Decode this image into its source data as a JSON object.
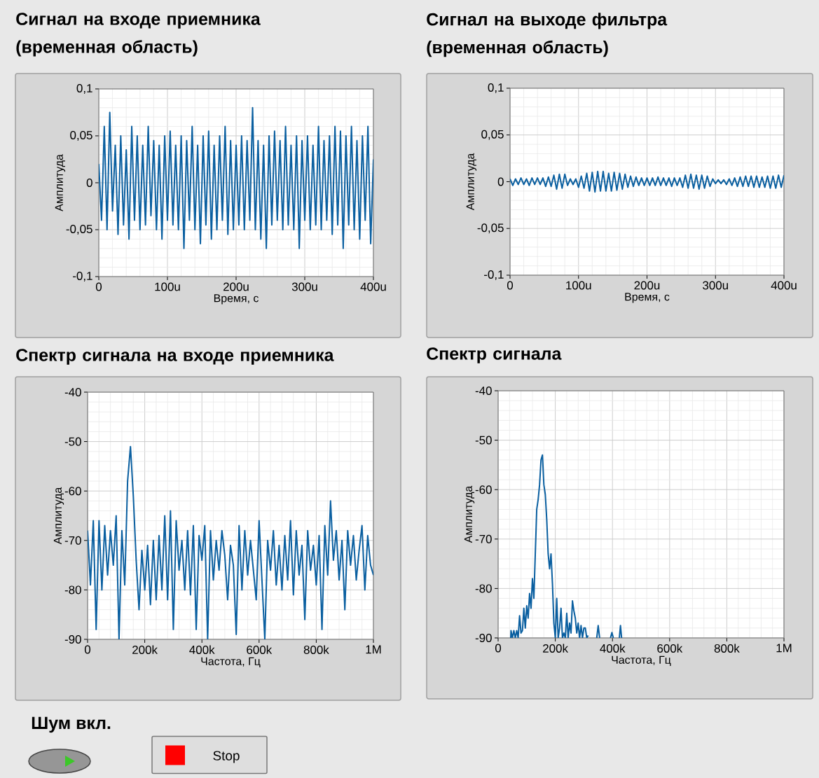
{
  "chart_data": [
    {
      "type": "line",
      "title": "Сигнал на входе приемника (временная область)",
      "xlabel": "Время, с",
      "ylabel": "Амплитуда",
      "color": "#0a5fa0",
      "grid": true,
      "xlim": [
        0,
        400
      ],
      "ylim": [
        -0.1,
        0.1
      ],
      "xticks": [
        0,
        {
          "value": 100,
          "label": "100u"
        },
        {
          "value": 200,
          "label": "200u"
        },
        {
          "value": 300,
          "label": "300u"
        },
        {
          "value": 400,
          "label": "400u"
        }
      ],
      "yticks": [
        {
          "value": -0.1,
          "label": "-0,1"
        },
        {
          "value": -0.05,
          "label": "-0,05"
        },
        0,
        {
          "value": 0.05,
          "label": "0,05"
        },
        {
          "value": 0.1,
          "label": "0,1"
        }
      ],
      "x": [
        0,
        4,
        8,
        12,
        16,
        20,
        24,
        28,
        32,
        36,
        40,
        44,
        48,
        52,
        56,
        60,
        64,
        68,
        72,
        76,
        80,
        84,
        88,
        92,
        96,
        100,
        104,
        108,
        112,
        116,
        120,
        124,
        128,
        132,
        136,
        140,
        144,
        148,
        152,
        156,
        160,
        164,
        168,
        172,
        176,
        180,
        184,
        188,
        192,
        196,
        200,
        204,
        208,
        212,
        216,
        220,
        224,
        228,
        232,
        236,
        240,
        244,
        248,
        252,
        256,
        260,
        264,
        268,
        272,
        276,
        280,
        284,
        288,
        292,
        296,
        300,
        304,
        308,
        312,
        316,
        320,
        324,
        328,
        332,
        336,
        340,
        344,
        348,
        352,
        356,
        360,
        364,
        368,
        372,
        376,
        380,
        384,
        388,
        392,
        396,
        400
      ],
      "values": [
        0.02,
        -0.04,
        0.06,
        -0.05,
        0.075,
        -0.03,
        0.04,
        -0.055,
        0.05,
        -0.045,
        0.035,
        -0.06,
        0.06,
        -0.04,
        0.05,
        -0.05,
        0.04,
        -0.045,
        0.06,
        -0.035,
        0.045,
        -0.05,
        0.04,
        -0.06,
        0.05,
        -0.04,
        0.055,
        -0.045,
        0.04,
        -0.05,
        0.05,
        -0.07,
        0.045,
        -0.04,
        0.06,
        -0.05,
        0.04,
        -0.065,
        0.05,
        -0.045,
        0.055,
        -0.06,
        0.04,
        -0.05,
        0.05,
        -0.04,
        0.06,
        -0.055,
        0.045,
        -0.05,
        0.04,
        -0.045,
        0.05,
        -0.05,
        0.045,
        -0.04,
        0.08,
        -0.05,
        0.045,
        -0.06,
        0.04,
        -0.07,
        0.05,
        -0.045,
        0.055,
        -0.04,
        0.045,
        -0.05,
        0.06,
        -0.045,
        0.04,
        -0.05,
        0.05,
        -0.07,
        0.045,
        -0.04,
        0.05,
        -0.05,
        0.04,
        -0.045,
        0.06,
        -0.05,
        0.045,
        -0.04,
        0.05,
        -0.055,
        0.06,
        -0.045,
        0.055,
        -0.07,
        0.05,
        -0.045,
        0.06,
        -0.05,
        0.045,
        -0.06,
        0.05,
        -0.04,
        0.06,
        -0.065,
        0.025
      ]
    },
    {
      "type": "line",
      "title": "Сигнал на выходе фильтра (временная область)",
      "xlabel": "Время, с",
      "ylabel": "Амплитуда",
      "color": "#0a5fa0",
      "grid": true,
      "xlim": [
        0,
        400
      ],
      "ylim": [
        -0.1,
        0.1
      ],
      "xticks": [
        0,
        {
          "value": 100,
          "label": "100u"
        },
        {
          "value": 200,
          "label": "200u"
        },
        {
          "value": 300,
          "label": "300u"
        },
        {
          "value": 400,
          "label": "400u"
        }
      ],
      "yticks": [
        {
          "value": -0.1,
          "label": "-0,1"
        },
        {
          "value": -0.05,
          "label": "-0,05"
        },
        0,
        {
          "value": 0.05,
          "label": "0,05"
        },
        {
          "value": 0.1,
          "label": "0,1"
        }
      ],
      "x": [
        0,
        4,
        8,
        12,
        16,
        20,
        24,
        28,
        32,
        36,
        40,
        44,
        48,
        52,
        56,
        60,
        64,
        68,
        72,
        76,
        80,
        84,
        88,
        92,
        96,
        100,
        104,
        108,
        112,
        116,
        120,
        124,
        128,
        132,
        136,
        140,
        144,
        148,
        152,
        156,
        160,
        164,
        168,
        172,
        176,
        180,
        184,
        188,
        192,
        196,
        200,
        204,
        208,
        212,
        216,
        220,
        224,
        228,
        232,
        236,
        240,
        244,
        248,
        252,
        256,
        260,
        264,
        268,
        272,
        276,
        280,
        284,
        288,
        292,
        296,
        300,
        304,
        308,
        312,
        316,
        320,
        324,
        328,
        332,
        336,
        340,
        344,
        348,
        352,
        356,
        360,
        364,
        368,
        372,
        376,
        380,
        384,
        388,
        392,
        396,
        400
      ],
      "values": [
        0.003,
        -0.004,
        0.003,
        -0.003,
        0.004,
        -0.003,
        0.003,
        -0.004,
        0.004,
        -0.003,
        0.004,
        -0.003,
        0.004,
        -0.005,
        0.005,
        -0.005,
        0.007,
        -0.008,
        0.008,
        -0.007,
        0.008,
        -0.004,
        0.003,
        -0.003,
        0.003,
        -0.006,
        0.006,
        -0.007,
        0.009,
        -0.01,
        0.01,
        -0.011,
        0.011,
        -0.01,
        0.011,
        -0.01,
        0.009,
        -0.01,
        0.01,
        -0.009,
        0.009,
        -0.008,
        0.008,
        -0.006,
        0.006,
        -0.005,
        0.005,
        -0.004,
        0.004,
        -0.004,
        0.004,
        -0.004,
        0.004,
        -0.004,
        0.005,
        -0.004,
        0.004,
        -0.004,
        0.004,
        -0.005,
        0.004,
        -0.004,
        0.004,
        -0.006,
        0.007,
        -0.007,
        0.008,
        -0.007,
        0.007,
        -0.008,
        0.007,
        -0.007,
        0.006,
        -0.005,
        0.003,
        -0.002,
        0.002,
        -0.002,
        0.002,
        -0.003,
        0.003,
        -0.004,
        0.004,
        -0.005,
        0.005,
        -0.005,
        0.006,
        -0.005,
        0.006,
        -0.006,
        0.006,
        -0.006,
        0.005,
        -0.006,
        0.006,
        -0.007,
        0.006,
        -0.007,
        0.007,
        -0.006,
        0.007
      ]
    },
    {
      "type": "line",
      "title": "Спектр сигнала на входе приемника",
      "xlabel": "Частота, Гц",
      "ylabel": "Амплитуда",
      "color": "#0a5fa0",
      "grid": true,
      "xlim": [
        0,
        1000000
      ],
      "ylim": [
        -90,
        -40
      ],
      "xticks": [
        0,
        {
          "value": 200000,
          "label": "200k"
        },
        {
          "value": 400000,
          "label": "400k"
        },
        {
          "value": 600000,
          "label": "600k"
        },
        {
          "value": 800000,
          "label": "800k"
        },
        {
          "value": 1000000,
          "label": "1M"
        }
      ],
      "yticks": [
        -90,
        -80,
        -70,
        -60,
        -50,
        -40
      ],
      "x": [
        0,
        10000,
        20000,
        30000,
        40000,
        50000,
        60000,
        70000,
        80000,
        90000,
        100000,
        110000,
        120000,
        130000,
        140000,
        150000,
        160000,
        170000,
        180000,
        190000,
        200000,
        210000,
        220000,
        230000,
        240000,
        250000,
        260000,
        270000,
        280000,
        290000,
        300000,
        310000,
        320000,
        330000,
        340000,
        350000,
        360000,
        370000,
        380000,
        390000,
        400000,
        410000,
        420000,
        430000,
        440000,
        450000,
        460000,
        470000,
        480000,
        490000,
        500000,
        510000,
        520000,
        530000,
        540000,
        550000,
        560000,
        570000,
        580000,
        590000,
        600000,
        610000,
        620000,
        630000,
        640000,
        650000,
        660000,
        670000,
        680000,
        690000,
        700000,
        710000,
        720000,
        730000,
        740000,
        750000,
        760000,
        770000,
        780000,
        790000,
        800000,
        810000,
        820000,
        830000,
        840000,
        850000,
        860000,
        870000,
        880000,
        890000,
        900000,
        910000,
        920000,
        930000,
        940000,
        950000,
        960000,
        970000,
        980000,
        990000,
        1000000
      ],
      "values": [
        -68,
        -79,
        -66,
        -88,
        -66,
        -80,
        -67,
        -77,
        -68,
        -75,
        -65,
        -90,
        -68,
        -79,
        -58,
        -51,
        -61,
        -74,
        -84,
        -72,
        -80,
        -71,
        -83,
        -70,
        -82,
        -69,
        -80,
        -65,
        -82,
        -64,
        -88,
        -66,
        -76,
        -70,
        -80,
        -68,
        -81,
        -67,
        -88,
        -69,
        -74,
        -67,
        -90,
        -68,
        -78,
        -70,
        -76,
        -68,
        -73,
        -82,
        -71,
        -75,
        -89,
        -67,
        -80,
        -68,
        -77,
        -70,
        -76,
        -82,
        -66,
        -78,
        -90,
        -70,
        -76,
        -68,
        -79,
        -71,
        -80,
        -69,
        -78,
        -66,
        -81,
        -68,
        -77,
        -71,
        -86,
        -68,
        -76,
        -71,
        -79,
        -69,
        -88,
        -67,
        -77,
        -62,
        -74,
        -68,
        -78,
        -70,
        -84,
        -68,
        -75,
        -69,
        -78,
        -72,
        -67,
        -80,
        -69,
        -75,
        -77
      ]
    },
    {
      "type": "line",
      "title": "Спектр сигнала",
      "xlabel": "Частота, Гц",
      "ylabel": "Амплитуда",
      "color": "#0a5fa0",
      "grid": true,
      "xlim": [
        0,
        1000000
      ],
      "ylim": [
        -90,
        -40
      ],
      "xticks": [
        0,
        {
          "value": 200000,
          "label": "200k"
        },
        {
          "value": 400000,
          "label": "400k"
        },
        {
          "value": 600000,
          "label": "600k"
        },
        {
          "value": 800000,
          "label": "800k"
        },
        {
          "value": 1000000,
          "label": "1M"
        }
      ],
      "yticks": [
        -90,
        -80,
        -70,
        -60,
        -50,
        -40
      ],
      "x": [
        44000,
        45000,
        50000,
        55000,
        60000,
        65000,
        70000,
        75000,
        80000,
        85000,
        90000,
        95000,
        100000,
        105000,
        110000,
        115000,
        120000,
        125000,
        130000,
        135000,
        140000,
        145000,
        150000,
        155000,
        160000,
        165000,
        170000,
        175000,
        180000,
        185000,
        190000,
        195000,
        200000,
        205000,
        210000,
        215000,
        220000,
        225000,
        230000,
        235000,
        240000,
        245000,
        250000,
        255000,
        260000,
        265000,
        270000,
        275000,
        280000,
        285000,
        290000,
        295000,
        300000,
        305000,
        310000,
        315000,
        320000,
        345000,
        350000,
        355000,
        360000,
        393000,
        398000,
        403000,
        410000,
        424000,
        428000,
        432000
      ],
      "values": [
        -90,
        -88.5,
        -90,
        -88.5,
        -90,
        -88.5,
        -90,
        -85.5,
        -89,
        -88.5,
        -84,
        -88,
        -83.5,
        -86,
        -81,
        -84,
        -78,
        -82,
        -73,
        -64,
        -62,
        -59,
        -54,
        -53,
        -59,
        -61,
        -66,
        -73,
        -76,
        -73,
        -79,
        -87,
        -90,
        -82,
        -90,
        -88,
        -84,
        -90,
        -89,
        -90,
        -85,
        -90,
        -87,
        -89,
        -82.5,
        -84.5,
        -86,
        -89,
        -87,
        -90,
        -87.5,
        -90,
        -88,
        -88,
        -90,
        -89.5,
        null,
        -90,
        -87.5,
        -90,
        null,
        -90,
        -88.9,
        -90,
        null,
        -90,
        -87.5,
        -90
      ]
    },
    {
      "type": "other",
      "annotations": [
        "Шум вкл.",
        "Stop"
      ]
    }
  ]
}
